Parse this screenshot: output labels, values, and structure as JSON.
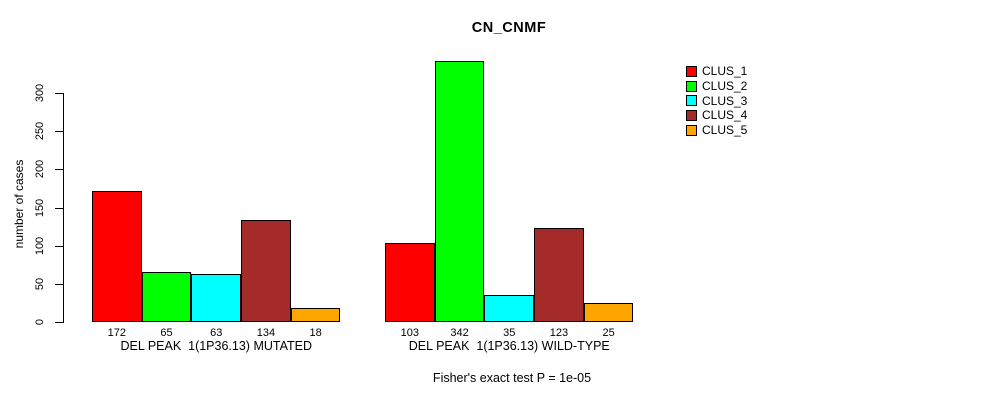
{
  "chart_data": {
    "type": "bar",
    "title": "CN_CNMF",
    "ylabel": "number of cases",
    "footer": "Fisher's exact test P = 1e-05",
    "ylim": [
      0,
      300
    ],
    "yticks": [
      0,
      50,
      100,
      150,
      200,
      250,
      300
    ],
    "grid": false,
    "legend_position": "top-right",
    "legend": [
      "CLUS_1",
      "CLUS_2",
      "CLUS_3",
      "CLUS_4",
      "CLUS_5"
    ],
    "colors": [
      "#FF0000",
      "#00FF00",
      "#00FFFF",
      "#A52A2A",
      "#FFA500"
    ],
    "bar_border_color": "#000000",
    "groups": [
      {
        "label": "DEL PEAK  1(1P36.13) MUTATED",
        "values": [
          172,
          65,
          63,
          134,
          18
        ]
      },
      {
        "label": "DEL PEAK  1(1P36.13) WILD-TYPE",
        "values": [
          103,
          342,
          35,
          123,
          25
        ]
      }
    ]
  }
}
